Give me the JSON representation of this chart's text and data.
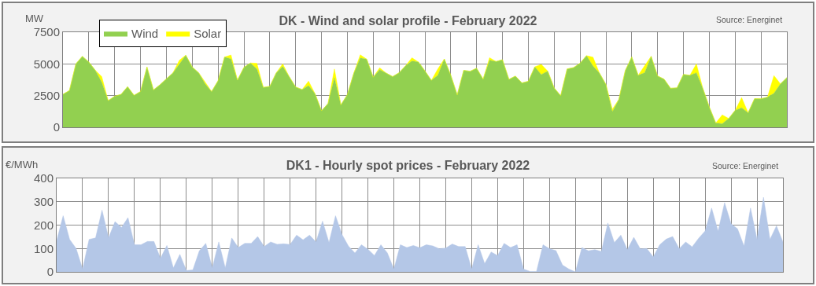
{
  "chart_data": [
    {
      "type": "area",
      "title": "DK - Wind and solar profile - February 2022",
      "ylabel": "MW",
      "annotations": [
        "Source: Energinet"
      ],
      "stacked": true,
      "legend": "top left",
      "grid": true,
      "tick_labels": "y",
      "ylim": [
        0,
        7500
      ],
      "yticks": [
        0,
        2500,
        5000,
        7500
      ],
      "categories": [
        null,
        null,
        null,
        null,
        null,
        null,
        null,
        null,
        null,
        null,
        null,
        null,
        null,
        null,
        null,
        null,
        null,
        null,
        null,
        null,
        null,
        null,
        null,
        null,
        null,
        null,
        null,
        null,
        null,
        null,
        null,
        null,
        null,
        null,
        null,
        null,
        null,
        null,
        null,
        null,
        null,
        null,
        null,
        null,
        null,
        null,
        null,
        null,
        null,
        null,
        null,
        null,
        null,
        null,
        null,
        null,
        null,
        null,
        null,
        null,
        null,
        null,
        null,
        null,
        null,
        null,
        null,
        null,
        null,
        null,
        null,
        null,
        null,
        null,
        null,
        null,
        null,
        null,
        null,
        null,
        null,
        null,
        null,
        null,
        null,
        null,
        null,
        null,
        null,
        null,
        null,
        null,
        null,
        null,
        null,
        null,
        null,
        null,
        null,
        null,
        null,
        null,
        null,
        null,
        null,
        null,
        null,
        null,
        null,
        null,
        null,
        null,
        null
      ],
      "series": [
        {
          "name": "Wind",
          "color": "#92d050",
          "values": [
            2600,
            2900,
            5000,
            5600,
            5150,
            4500,
            3550,
            2100,
            2450,
            2600,
            3200,
            2520,
            2820,
            4760,
            2950,
            3350,
            3820,
            4280,
            4980,
            5690,
            4750,
            4300,
            3420,
            2820,
            3670,
            5540,
            5400,
            3720,
            4730,
            5070,
            4600,
            3150,
            3230,
            4300,
            4800,
            4000,
            3180,
            2980,
            3290,
            2650,
            1300,
            1870,
            3900,
            1770,
            2580,
            4270,
            5470,
            5370,
            3950,
            4540,
            4280,
            4000,
            4300,
            4850,
            5230,
            5150,
            4450,
            3700,
            4110,
            5390,
            4110,
            2560,
            4490,
            4420,
            4660,
            3800,
            5290,
            5190,
            5330,
            3780,
            4040,
            3500,
            3630,
            4770,
            4160,
            4430,
            3100,
            2490,
            4600,
            4710,
            5050,
            5650,
            4830,
            4280,
            3380,
            1230,
            2200,
            4480,
            5550,
            4100,
            4310,
            5600,
            4050,
            3800,
            3080,
            3110,
            4170,
            4100,
            4300,
            3070,
            1600,
            340,
            280,
            690,
            1340,
            1540,
            1150,
            2260,
            2250,
            2380,
            2680,
            3420,
            3920
          ]
        },
        {
          "name": "Solar",
          "color": "#ffff00",
          "values": [
            0,
            0,
            0,
            0,
            0,
            0,
            450,
            0,
            0,
            0,
            0,
            0,
            0,
            0,
            0,
            0,
            0,
            0,
            300,
            0,
            0,
            0,
            150,
            0,
            0,
            0,
            300,
            0,
            0,
            0,
            450,
            0,
            0,
            0,
            200,
            0,
            0,
            0,
            350,
            0,
            0,
            0,
            700,
            0,
            0,
            0,
            250,
            0,
            0,
            150,
            0,
            0,
            0,
            0,
            250,
            0,
            0,
            0,
            500,
            0,
            0,
            0,
            0,
            0,
            0,
            0,
            200,
            0,
            0,
            0,
            0,
            0,
            0,
            0,
            800,
            0,
            0,
            0,
            0,
            0,
            0,
            0,
            700,
            0,
            0,
            200,
            0,
            0,
            0,
            0,
            550,
            0,
            0,
            0,
            0,
            0,
            0,
            0,
            700,
            0,
            0,
            0,
            700,
            0,
            0,
            800,
            0,
            0,
            0,
            0,
            1400,
            0,
            0
          ]
        }
      ]
    },
    {
      "type": "area",
      "title": "DK1 - Hourly spot prices - February 2022",
      "ylabel": "€/MWh",
      "annotations": [
        "Source: Energinet"
      ],
      "grid": true,
      "tick_labels": "y",
      "ylim": [
        0,
        400
      ],
      "yticks": [
        0,
        100,
        200,
        300,
        400
      ],
      "categories": [
        null,
        null,
        null,
        null,
        null,
        null,
        null,
        null,
        null,
        null,
        null,
        null,
        null,
        null,
        null,
        null,
        null,
        null,
        null,
        null,
        null,
        null,
        null,
        null,
        null,
        null,
        null,
        null,
        null,
        null,
        null,
        null,
        null,
        null,
        null,
        null,
        null,
        null,
        null,
        null,
        null,
        null,
        null,
        null,
        null,
        null,
        null,
        null,
        null,
        null,
        null,
        null,
        null,
        null,
        null,
        null,
        null,
        null,
        null,
        null,
        null,
        null,
        null,
        null,
        null,
        null,
        null,
        null,
        null,
        null,
        null,
        null,
        null,
        null,
        null,
        null,
        null,
        null,
        null,
        null,
        null,
        null,
        null,
        null,
        null,
        null,
        null,
        null,
        null,
        null,
        null,
        null,
        null,
        null,
        null,
        null,
        null,
        null,
        null,
        null,
        null,
        null,
        null,
        null,
        null,
        null,
        null,
        null,
        null,
        null,
        null,
        null,
        null
      ],
      "series": [
        {
          "color": "#b4c7e7",
          "values": [
            133,
            240,
            139,
            100,
            12,
            139,
            145,
            264,
            145,
            215,
            190,
            232,
            116,
            116,
            130,
            130,
            58,
            113,
            17,
            75,
            6,
            8,
            90,
            122,
            17,
            128,
            17,
            145,
            104,
            122,
            122,
            151,
            108,
            128,
            118,
            120,
            117,
            157,
            137,
            157,
            128,
            217,
            125,
            240,
            160,
            110,
            81,
            116,
            97,
            70,
            116,
            81,
            12,
            116,
            104,
            113,
            103,
            116,
            111,
            99,
            102,
            119,
            108,
            108,
            12,
            116,
            35,
            85,
            70,
            122,
            104,
            116,
            12,
            2,
            2,
            116,
            99,
            91,
            29,
            12,
            0,
            104,
            90,
            95,
            87,
            209,
            125,
            157,
            95,
            148,
            98,
            100,
            64,
            116,
            140,
            151,
            99,
            128,
            107,
            144,
            175,
            273,
            174,
            296,
            206,
            184,
            110,
            273,
            139,
            319,
            139,
            197,
            128
          ]
        }
      ]
    }
  ]
}
